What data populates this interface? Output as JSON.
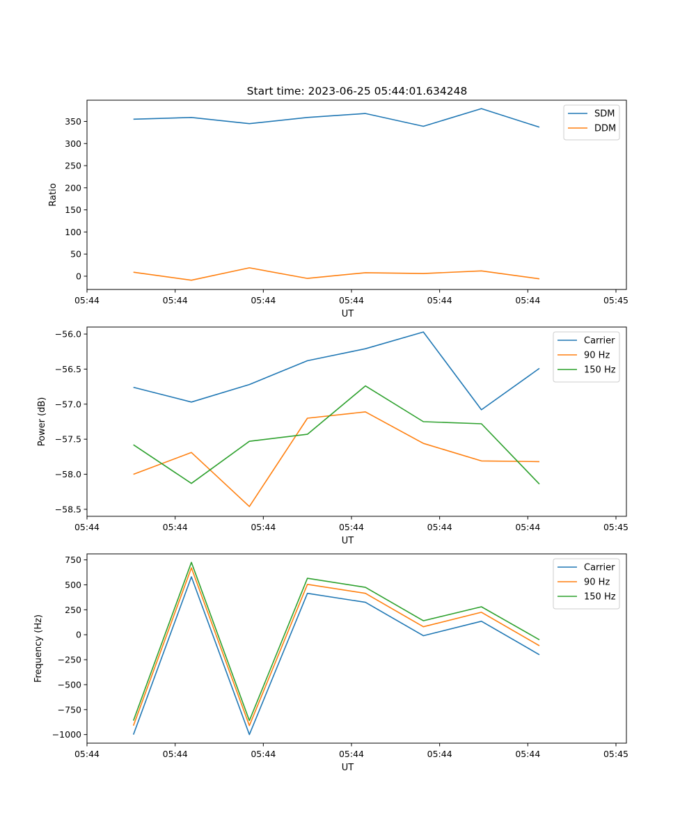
{
  "figure": {
    "title": "Start time: 2023-06-25 05:44:01.634248"
  },
  "chart_data": [
    {
      "type": "line",
      "x": [
        1,
        2,
        3,
        4,
        5,
        6,
        7,
        8
      ],
      "xlabel": "UT",
      "ylabel": "Ratio",
      "xlim": [
        0.2,
        9.5
      ],
      "ylim": [
        -30,
        398
      ],
      "x_ticks": [
        0.2,
        1.72,
        3.24,
        4.76,
        6.28,
        7.8,
        9.32
      ],
      "x_tick_labels": [
        "05:44",
        "05:44",
        "05:44",
        "05:44",
        "05:44",
        "05:44",
        "05:45"
      ],
      "y_ticks": [
        0,
        50,
        100,
        150,
        200,
        250,
        300,
        350
      ],
      "y_tick_labels": [
        "0",
        "50",
        "100",
        "150",
        "200",
        "250",
        "300",
        "350"
      ],
      "legend": "top-right",
      "grid": false,
      "series": [
        {
          "name": "SDM",
          "color": "#1f77b4",
          "values": [
            355,
            359,
            345,
            359,
            368,
            339,
            379,
            337
          ]
        },
        {
          "name": "DDM",
          "color": "#ff7f0e",
          "values": [
            9,
            -9,
            19,
            -5,
            8,
            6,
            12,
            -6
          ]
        }
      ]
    },
    {
      "type": "line",
      "x": [
        1,
        2,
        3,
        4,
        5,
        6,
        7,
        8
      ],
      "xlabel": "UT",
      "ylabel": "Power (dB)",
      "xlim": [
        0.2,
        9.5
      ],
      "ylim": [
        -58.6,
        -55.9
      ],
      "x_ticks": [
        0.2,
        1.72,
        3.24,
        4.76,
        6.28,
        7.8,
        9.32
      ],
      "x_tick_labels": [
        "05:44",
        "05:44",
        "05:44",
        "05:44",
        "05:44",
        "05:44",
        "05:45"
      ],
      "y_ticks": [
        -58.5,
        -58.0,
        -57.5,
        -57.0,
        -56.5,
        -56.0
      ],
      "y_tick_labels": [
        "−58.5",
        "−58.0",
        "−57.5",
        "−57.0",
        "−56.5",
        "−56.0"
      ],
      "legend": "top-right",
      "grid": false,
      "series": [
        {
          "name": "Carrier",
          "color": "#1f77b4",
          "values": [
            -56.76,
            -56.97,
            -56.72,
            -56.38,
            -56.21,
            -55.97,
            -57.08,
            -56.49
          ]
        },
        {
          "name": "90 Hz",
          "color": "#ff7f0e",
          "values": [
            -58.0,
            -57.69,
            -58.46,
            -57.2,
            -57.11,
            -57.56,
            -57.81,
            -57.82
          ]
        },
        {
          "name": "150 Hz",
          "color": "#2ca02c",
          "values": [
            -57.58,
            -58.13,
            -57.53,
            -57.43,
            -56.74,
            -57.25,
            -57.28,
            -58.14
          ]
        }
      ]
    },
    {
      "type": "line",
      "x": [
        1,
        2,
        3,
        4,
        5,
        6,
        7,
        8
      ],
      "xlabel": "UT",
      "ylabel": "Frequency (Hz)",
      "xlim": [
        0.2,
        9.5
      ],
      "ylim": [
        -1086,
        810
      ],
      "x_ticks": [
        0.2,
        1.72,
        3.24,
        4.76,
        6.28,
        7.8,
        9.32
      ],
      "x_tick_labels": [
        "05:44",
        "05:44",
        "05:44",
        "05:44",
        "05:44",
        "05:44",
        "05:45"
      ],
      "y_ticks": [
        -1000,
        -750,
        -500,
        -250,
        0,
        250,
        500,
        750
      ],
      "y_tick_labels": [
        "−1000",
        "−750",
        "−500",
        "−250",
        "0",
        "250",
        "500",
        "750"
      ],
      "legend": "top-right",
      "grid": false,
      "series": [
        {
          "name": "Carrier",
          "color": "#1f77b4",
          "values": [
            -1000,
            580,
            -1000,
            415,
            325,
            -10,
            135,
            -200
          ]
        },
        {
          "name": "90 Hz",
          "color": "#ff7f0e",
          "values": [
            -910,
            670,
            -910,
            505,
            415,
            80,
            225,
            -110
          ]
        },
        {
          "name": "150 Hz",
          "color": "#2ca02c",
          "values": [
            -860,
            725,
            -860,
            565,
            475,
            140,
            280,
            -50
          ]
        }
      ]
    }
  ]
}
